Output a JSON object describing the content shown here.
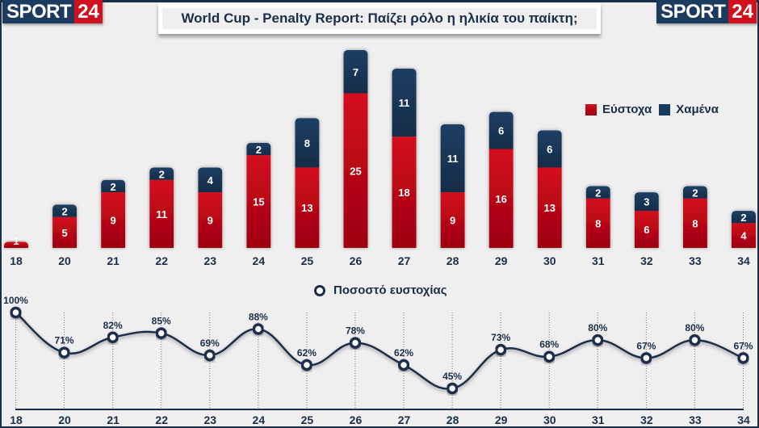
{
  "header": {
    "logo_left": {
      "part1": "SPORT",
      "part2": "24"
    },
    "logo_right": {
      "part1": "SPORT",
      "part2": "24"
    },
    "title": "World Cup - Penalty Report: Παίζει ρόλο η ηλικία του παίκτη;"
  },
  "colors": {
    "scored": "#c8081a",
    "missed": "#1b3a5c",
    "text": "#1b2e48",
    "background": "#efefef"
  },
  "chart_data": [
    {
      "type": "bar",
      "stacked": true,
      "title": "World Cup - Penalty Report: Παίζει ρόλο η ηλικία του παίκτη;",
      "xlabel": "",
      "ylabel": "",
      "categories": [
        "18",
        "20",
        "21",
        "22",
        "23",
        "24",
        "25",
        "26",
        "27",
        "28",
        "29",
        "30",
        "31",
        "32",
        "33",
        "34"
      ],
      "series": [
        {
          "name": "Εύστοχα",
          "values": [
            1,
            5,
            9,
            11,
            9,
            15,
            13,
            25,
            18,
            9,
            16,
            13,
            8,
            6,
            8,
            4
          ]
        },
        {
          "name": "Χαμένα",
          "values": [
            0,
            2,
            2,
            2,
            4,
            2,
            8,
            7,
            11,
            11,
            6,
            6,
            2,
            3,
            2,
            2
          ]
        }
      ],
      "ylim": [
        0,
        32
      ],
      "grid": false,
      "legend": "top-right"
    },
    {
      "type": "line",
      "title": "",
      "legend_label": "Ποσοστό ευστοχίας",
      "categories": [
        "18",
        "20",
        "21",
        "22",
        "23",
        "24",
        "25",
        "26",
        "27",
        "28",
        "29",
        "30",
        "31",
        "32",
        "33",
        "34"
      ],
      "values": [
        100,
        71,
        82,
        85,
        69,
        88,
        62,
        78,
        62,
        45,
        73,
        68,
        80,
        67,
        80,
        67
      ],
      "value_labels": [
        "100%",
        "71%",
        "82%",
        "85%",
        "69%",
        "88%",
        "62%",
        "78%",
        "62%",
        "45%",
        "73%",
        "68%",
        "80%",
        "67%",
        "80%",
        "67%"
      ],
      "ylim": [
        45,
        100
      ],
      "grid": "vertical-dotted",
      "legend": "top-center"
    }
  ]
}
